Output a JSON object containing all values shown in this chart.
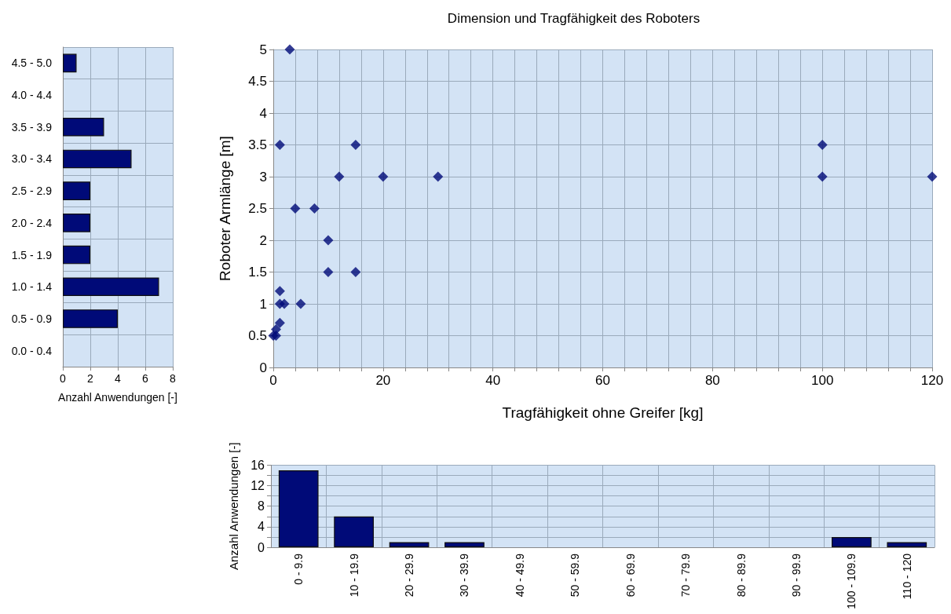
{
  "chart_data": [
    {
      "type": "bar",
      "orientation": "horizontal",
      "categories": [
        "4.5 - 5.0",
        "4.0 - 4.4",
        "3.5 - 3.9",
        "3.0 - 3.4",
        "2.5 - 2.9",
        "2.0 - 2.4",
        "1.5 - 1.9",
        "1.0 - 1.4",
        "0.5 - 0.9",
        "0.0 - 0.4"
      ],
      "values": [
        1,
        0,
        3,
        5,
        2,
        2,
        2,
        7,
        4,
        0
      ],
      "color": "#000a78",
      "xlabel": "Anzahl Anwendungen [-]",
      "xlim": [
        0,
        8
      ],
      "xticks": [
        0,
        2,
        4,
        6,
        8
      ],
      "grid": true
    },
    {
      "type": "scatter",
      "title": "Dimension und Tragfähigkeit des Roboters",
      "xlabel": "Tragfähigkeit ohne Greifer [kg]",
      "ylabel": "Roboter Armlänge [m]",
      "x": [
        3,
        1.2,
        15,
        12,
        20,
        30,
        4,
        7.5,
        10,
        10,
        15,
        1.2,
        1.2,
        2,
        5,
        1.2,
        0.5,
        0,
        0.5,
        100,
        100,
        120
      ],
      "values": [
        5,
        3.5,
        3.5,
        3,
        3,
        3,
        2.5,
        2.5,
        2,
        1.5,
        1.5,
        1.2,
        1,
        1,
        1,
        0.7,
        0.6,
        0.5,
        0.5,
        3.5,
        3,
        3
      ],
      "color": "#000a78",
      "marker": "diamond",
      "xlim": [
        0,
        120
      ],
      "xticks": [
        0,
        {
          "value": 4,
          "label": null
        },
        {
          "value": 8,
          "label": null
        },
        {
          "value": 12,
          "label": null
        },
        {
          "value": 16,
          "label": null
        },
        20,
        {
          "value": 24,
          "label": null
        },
        {
          "value": 28,
          "label": null
        },
        {
          "value": 32,
          "label": null
        },
        {
          "value": 36,
          "label": null
        },
        40,
        {
          "value": 44,
          "label": null
        },
        {
          "value": 48,
          "label": null
        },
        {
          "value": 52,
          "label": null
        },
        {
          "value": 56,
          "label": null
        },
        60,
        {
          "value": 64,
          "label": null
        },
        {
          "value": 68,
          "label": null
        },
        {
          "value": 72,
          "label": null
        },
        {
          "value": 76,
          "label": null
        },
        80,
        {
          "value": 84,
          "label": null
        },
        {
          "value": 88,
          "label": null
        },
        {
          "value": 92,
          "label": null
        },
        {
          "value": 96,
          "label": null
        },
        100,
        {
          "value": 104,
          "label": null
        },
        {
          "value": 108,
          "label": null
        },
        {
          "value": 112,
          "label": null
        },
        {
          "value": 116,
          "label": null
        },
        120
      ],
      "ylim": [
        0,
        5
      ],
      "yticks": [
        0,
        0.5,
        1,
        1.5,
        2,
        2.5,
        3,
        3.5,
        4,
        4.5,
        5
      ],
      "grid": true
    },
    {
      "type": "bar",
      "categories": [
        "0 - 9.9",
        "10 - 19.9",
        "20 - 29.9",
        "30 - 39.9",
        "40 - 49.9",
        "50 - 59.9",
        "60 - 69.9",
        "70 - 79.9",
        "80 - 89.9",
        "90 - 99.9",
        "100 - 109.9",
        "110 - 120"
      ],
      "values": [
        15,
        6,
        1,
        1,
        0,
        0,
        0,
        0,
        0,
        0,
        2,
        1
      ],
      "color": "#000a78",
      "ylabel": "Anzahl Anwendungen [-]",
      "ylim": [
        0,
        16
      ],
      "yticks": [
        0,
        {
          "value": 2,
          "label": null
        },
        4,
        {
          "value": 6,
          "label": null
        },
        8,
        {
          "value": 10,
          "label": null
        },
        12,
        {
          "value": 14,
          "label": null
        },
        16
      ],
      "grid": true
    }
  ]
}
